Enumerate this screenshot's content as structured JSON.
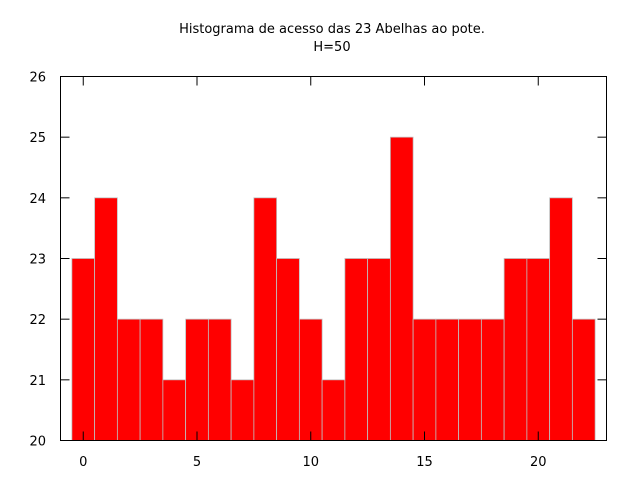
{
  "chart_data": {
    "type": "bar",
    "title": "Histograma de acesso das 23 Abelhas ao pote.",
    "subtitle": "H=50",
    "xlabel": "",
    "ylabel": "",
    "x": [
      0,
      1,
      2,
      3,
      4,
      5,
      6,
      7,
      8,
      9,
      10,
      11,
      12,
      13,
      14,
      15,
      16,
      17,
      18,
      19,
      20,
      21,
      22
    ],
    "values": [
      23,
      24,
      22,
      22,
      21,
      22,
      22,
      21,
      24,
      23,
      22,
      21,
      23,
      23,
      25,
      22,
      22,
      22,
      22,
      23,
      23,
      24,
      22
    ],
    "xlim": [
      -1,
      23
    ],
    "ylim": [
      20,
      26
    ],
    "xticks": [
      0,
      5,
      10,
      15,
      20
    ],
    "yticks": [
      20,
      21,
      22,
      23,
      24,
      25,
      26
    ],
    "bar_color": "#ff0000",
    "bar_edge_color": "#c0c0c0",
    "grid": false,
    "legend": "none"
  }
}
